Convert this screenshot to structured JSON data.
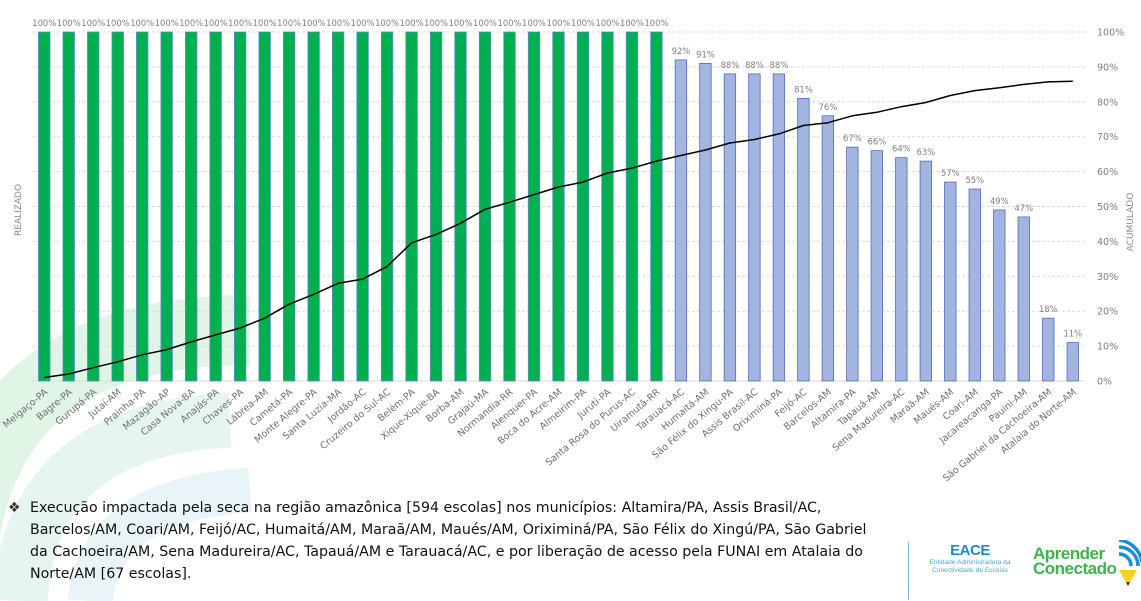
{
  "chart_data": {
    "type": "bar+line",
    "title": "",
    "ylabel_left": "REALIZADO",
    "ylabel_right": "ACUMULADO",
    "xlabel": "",
    "ylim_left": [
      0,
      100
    ],
    "ylim_right": [
      0,
      100
    ],
    "yticks_right": [
      "0%",
      "10%",
      "20%",
      "30%",
      "40%",
      "50%",
      "60%",
      "70%",
      "80%",
      "90%",
      "100%"
    ],
    "grid": true,
    "legend": "none",
    "colors": {
      "complete": "#00b050",
      "partial": "#a3b4e0",
      "partial_border": "#4a6fb5",
      "complete_border": "#5b8fc9",
      "line": "#000000",
      "grid": "#d9d9d9"
    },
    "categories": [
      "Melgaço-PA",
      "Bagre-PA",
      "Gurupá-PA",
      "Jutaí-AM",
      "Prainha-PA",
      "Mazagão-AP",
      "Casa Nova-BA",
      "Anajás-PA",
      "Chaves-PA",
      "Lábrea-AM",
      "Cametá-PA",
      "Monte Alegre-PA",
      "Santa Luzia-MA",
      "Jordão-AC",
      "Cruzeiro do Sul-AC",
      "Belém-PA",
      "Xique-Xique-BA",
      "Borba-AM",
      "Grajaú-MA",
      "Normandia-RR",
      "Alenquer-PA",
      "Boca do Acre-AM",
      "Almeirim-PA",
      "Juruti-PA",
      "Santa Rosa do Purus-AC",
      "Uiramutã-RR",
      "Tarauacá-AC",
      "Humaitá-AM",
      "São Félix do Xingu-PA",
      "Assis Brasil-AC",
      "Oriximiná-PA",
      "Feijó-AC",
      "Barcelos-AM",
      "Altamira-PA",
      "Tapauá-AM",
      "Sena Madureira-AC",
      "Maraã-AM",
      "Maués-AM",
      "Coari-AM",
      "Jacareacanga-PA",
      "Pauini-AM",
      "São Gabriel da Cachoeira-AM",
      "Atalaia do Norte-AM"
    ],
    "series": [
      {
        "name": "REALIZADO",
        "type": "bar",
        "axis": "left",
        "values": [
          100,
          100,
          100,
          100,
          100,
          100,
          100,
          100,
          100,
          100,
          100,
          100,
          100,
          100,
          100,
          100,
          100,
          100,
          100,
          100,
          100,
          100,
          100,
          100,
          100,
          100,
          92,
          91,
          88,
          88,
          88,
          81,
          76,
          67,
          66,
          64,
          63,
          57,
          55,
          49,
          47,
          18,
          11
        ],
        "labels": [
          "100%",
          "100%",
          "100%",
          "100%",
          "100%",
          "100%",
          "100%",
          "100%",
          "100%",
          "100%",
          "100%",
          "100%",
          "100%",
          "100%",
          "100%",
          "100%",
          "100%",
          "100%",
          "100%",
          "100%",
          "100%",
          "100%",
          "100%",
          "100%",
          "100%",
          "100%",
          "92%",
          "91%",
          "88%",
          "88%",
          "88%",
          "81%",
          "76%",
          "67%",
          "66%",
          "64%",
          "63%",
          "57%",
          "55%",
          "49%",
          "47%",
          "18%",
          "11%"
        ]
      },
      {
        "name": "ACUMULADO",
        "type": "line",
        "axis": "right",
        "values": [
          1,
          2,
          3.8,
          5.5,
          7.5,
          9,
          11.2,
          13.2,
          15.2,
          18,
          22,
          24.8,
          28,
          29.2,
          32.8,
          39.6,
          42,
          45.2,
          49.2,
          51.2,
          53.4,
          55.6,
          57,
          59.6,
          61,
          63,
          64.6,
          66.2,
          68.2,
          69.2,
          70.8,
          73.2,
          74,
          76,
          77,
          78.6,
          79.8,
          81.8,
          83.2,
          84,
          85,
          85.7,
          85.9
        ]
      }
    ]
  },
  "note": {
    "bullet": "❖",
    "text": "Execução impactada pela seca na região amazônica [594 escolas] nos municípios: Altamira/PA, Assis Brasil/AC, Barcelos/AM, Coari/AM, Feijó/AC, Humaitá/AM, Maraã/AM, Maués/AM, Oriximiná/PA, São Félix do Xingú/PA, São Gabriel da Cachoeira/AM, Sena Madureira/AC, Tapauá/AM e Tarauacá/AC, e por liberação de acesso pela FUNAI em Atalaia do Norte/AM [67 escolas]."
  },
  "logos": {
    "eace_name": "EACE",
    "eace_sub1": "Entidade Administradora da",
    "eace_sub2": "Conectividade de Escolas",
    "aprender_line1": "Aprender",
    "aprender_line2": "Conectado"
  }
}
